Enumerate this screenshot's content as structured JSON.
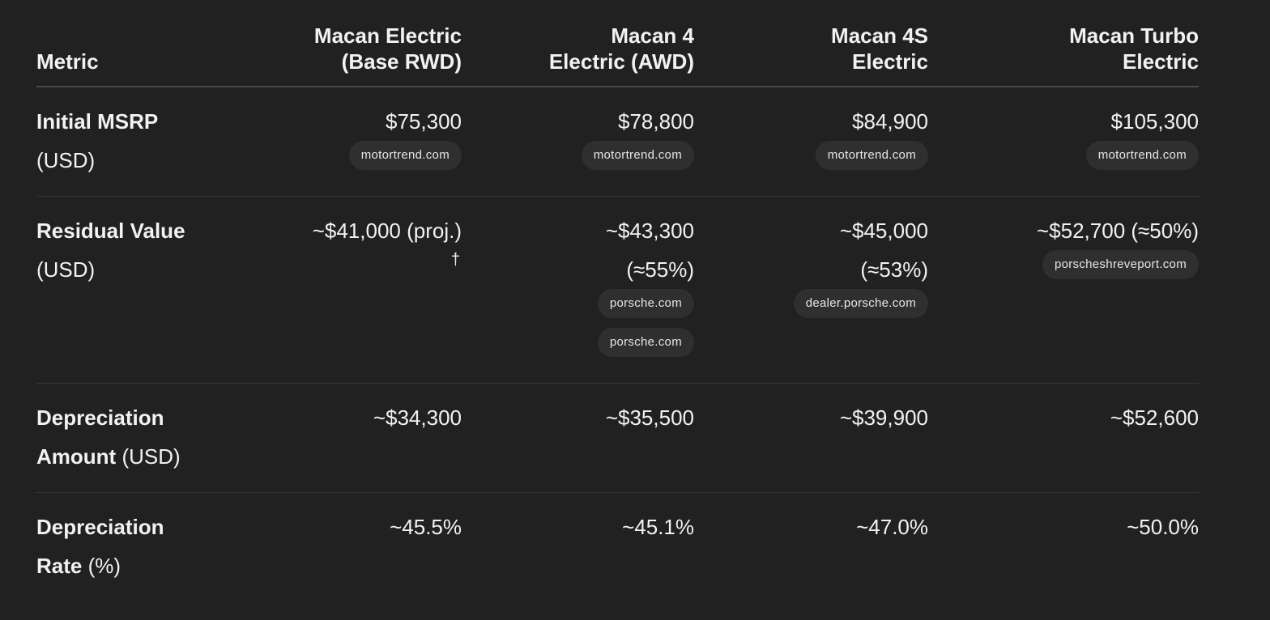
{
  "table": {
    "headers": [
      "Metric",
      "Macan Electric (Base RWD)",
      "Macan 4 Electric (AWD)",
      "Macan 4S Electric",
      "Macan Turbo Electric"
    ],
    "header_lines": [
      [
        "Metric"
      ],
      [
        "Macan Electric",
        "(Base RWD)"
      ],
      [
        "Macan 4",
        "Electric (AWD)"
      ],
      [
        "Macan 4S",
        "Electric"
      ],
      [
        "Macan Turbo",
        "Electric"
      ]
    ],
    "rows": [
      {
        "metric_bold": "Initial MSRP",
        "metric_unit": "(USD)",
        "cells": [
          {
            "value": "$75,300",
            "sources": [
              "motortrend.com"
            ]
          },
          {
            "value": "$78,800",
            "sources": [
              "motortrend.com"
            ]
          },
          {
            "value": "$84,900",
            "sources": [
              "motortrend.com"
            ]
          },
          {
            "value": "$105,300",
            "sources": [
              "motortrend.com"
            ]
          }
        ]
      },
      {
        "metric_bold": "Residual Value",
        "metric_unit": "(USD)",
        "cells": [
          {
            "value": "~$41,000 (proj.)",
            "footnote": "†",
            "sources": []
          },
          {
            "value_line1": "~$43,300",
            "value_line2": "(≈55%)",
            "sources": [
              "porsche.com",
              "porsche.com"
            ]
          },
          {
            "value_line1": "~$45,000",
            "value_line2": "(≈53%)",
            "sources": [
              "dealer.porsche.com"
            ]
          },
          {
            "value": "~$52,700 (≈50%)",
            "sources": [
              "porscheshreveport.com"
            ]
          }
        ]
      },
      {
        "metric_bold1": "Depreciation",
        "metric_bold2": "Amount",
        "metric_unit": "(USD)",
        "cells": [
          {
            "value": "~$34,300"
          },
          {
            "value": "~$35,500"
          },
          {
            "value": "~$39,900"
          },
          {
            "value": "~$52,600"
          }
        ]
      },
      {
        "metric_bold1": "Depreciation",
        "metric_bold2": "Rate",
        "metric_unit": "(%)",
        "cells": [
          {
            "value": "~45.5%"
          },
          {
            "value": "~45.1%"
          },
          {
            "value": "~47.0%"
          },
          {
            "value": "~50.0%"
          }
        ]
      }
    ]
  }
}
